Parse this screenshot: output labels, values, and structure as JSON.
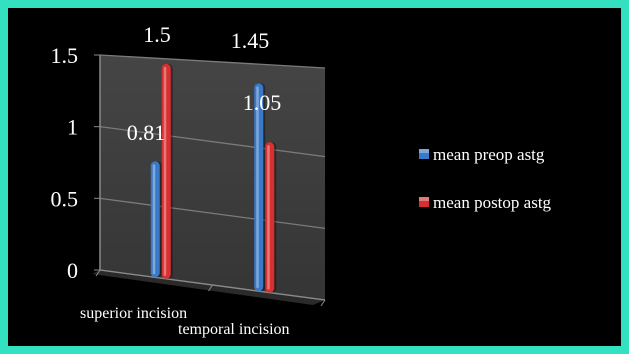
{
  "chart_data": {
    "type": "bar",
    "title": "",
    "xlabel": "",
    "ylabel": "",
    "categories": [
      "superior incision",
      "temporal incision"
    ],
    "ylim": [
      0,
      1.5
    ],
    "yticks": [
      "0",
      "0.5",
      "1",
      "1.5"
    ],
    "grid": true,
    "legend_position": "right",
    "series": [
      {
        "name": "mean preop astg",
        "values": [
          0.81,
          1.45
        ],
        "labels": [
          "0.81",
          "1.45"
        ],
        "color": "#3a78c8"
      },
      {
        "name": "mean postop astg",
        "values": [
          1.5,
          1.05
        ],
        "labels": [
          "1.5",
          "1.05"
        ],
        "color": "#d83030"
      }
    ]
  },
  "colors": {
    "border": "#33e0c0",
    "background": "#000000",
    "plot_wall": "#3e3e3e",
    "text": "#ffffff"
  }
}
